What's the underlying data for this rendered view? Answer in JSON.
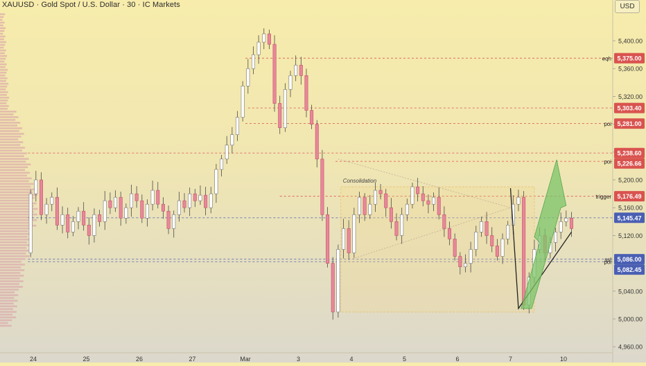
{
  "header": {
    "symbol_title": "XAUUSD · Gold Spot / U.S. Dollar · 30 · IC Markets",
    "currency": "USD"
  },
  "colors": {
    "up": "#d9d9d9",
    "down": "#e8879a",
    "candle_body_up": "#ffffff",
    "wick": "#555555",
    "level_red": "#d9534f",
    "level_blue": "#4a5fb3",
    "arrow_green": "#7cc46a",
    "box": "#e8c77a"
  },
  "chart_data": {
    "type": "candlestick",
    "title": "XAUUSD · Gold Spot / U.S. Dollar · 30 · IC Markets",
    "ylim": [
      4950,
      5435
    ],
    "y_ticks": [
      "5,400.00",
      "5,360.00",
      "5,320.00",
      "5,280.00",
      "5,240.00",
      "5,200.00",
      "5,160.00",
      "5,120.00",
      "5,040.00",
      "5,000.00",
      "4,960.00"
    ],
    "y_tick_values": [
      5400,
      5360,
      5320,
      5280,
      5240,
      5200,
      5160,
      5120,
      5040,
      5000,
      4960
    ],
    "x_ticks": [
      "24",
      "25",
      "26",
      "27",
      "Mar",
      "3",
      "4",
      "5",
      "6",
      "7",
      "10"
    ],
    "x_tick_values": [
      0,
      1,
      2,
      3,
      4,
      5,
      6,
      7,
      8,
      9,
      10
    ],
    "xlim": [
      -0.1,
      10.4
    ],
    "grid": false,
    "candles_estimated": [
      [
        -0.05,
        5095,
        5180
      ],
      [
        0.05,
        5180,
        5200
      ],
      [
        0.15,
        5200,
        5150
      ],
      [
        0.25,
        5150,
        5165
      ],
      [
        0.35,
        5165,
        5175
      ],
      [
        0.45,
        5175,
        5135
      ],
      [
        0.55,
        5135,
        5150
      ],
      [
        0.65,
        5150,
        5125
      ],
      [
        0.75,
        5125,
        5140
      ],
      [
        0.85,
        5140,
        5155
      ],
      [
        0.95,
        5155,
        5135
      ],
      [
        1.05,
        5135,
        5120
      ],
      [
        1.15,
        5120,
        5150
      ],
      [
        1.25,
        5150,
        5140
      ],
      [
        1.35,
        5140,
        5170
      ],
      [
        1.45,
        5170,
        5160
      ],
      [
        1.55,
        5160,
        5175
      ],
      [
        1.65,
        5175,
        5145
      ],
      [
        1.75,
        5145,
        5160
      ],
      [
        1.85,
        5160,
        5180
      ],
      [
        1.95,
        5180,
        5170
      ],
      [
        2.05,
        5170,
        5145
      ],
      [
        2.15,
        5145,
        5165
      ],
      [
        2.25,
        5165,
        5185
      ],
      [
        2.35,
        5185,
        5165
      ],
      [
        2.45,
        5165,
        5155
      ],
      [
        2.55,
        5155,
        5130
      ],
      [
        2.65,
        5130,
        5150
      ],
      [
        2.75,
        5150,
        5170
      ],
      [
        2.85,
        5170,
        5160
      ],
      [
        2.95,
        5160,
        5180
      ],
      [
        3.05,
        5180,
        5170
      ],
      [
        3.15,
        5170,
        5178
      ],
      [
        3.25,
        5178,
        5160
      ],
      [
        3.35,
        5160,
        5180
      ],
      [
        3.45,
        5180,
        5215
      ],
      [
        3.55,
        5215,
        5230
      ],
      [
        3.65,
        5230,
        5250
      ],
      [
        3.75,
        5250,
        5265
      ],
      [
        3.85,
        5265,
        5290
      ],
      [
        3.95,
        5290,
        5335
      ],
      [
        4.05,
        5335,
        5360
      ],
      [
        4.15,
        5360,
        5380
      ],
      [
        4.25,
        5380,
        5398
      ],
      [
        4.35,
        5398,
        5410
      ],
      [
        4.45,
        5410,
        5395
      ],
      [
        4.55,
        5395,
        5310
      ],
      [
        4.65,
        5310,
        5275
      ],
      [
        4.75,
        5275,
        5330
      ],
      [
        4.85,
        5330,
        5350
      ],
      [
        4.95,
        5350,
        5365
      ],
      [
        5.05,
        5365,
        5350
      ],
      [
        5.15,
        5350,
        5300
      ],
      [
        5.25,
        5300,
        5280
      ],
      [
        5.35,
        5280,
        5230
      ],
      [
        5.45,
        5230,
        5150
      ],
      [
        5.55,
        5150,
        5080
      ],
      [
        5.65,
        5080,
        5010
      ],
      [
        5.75,
        5010,
        5100
      ],
      [
        5.85,
        5100,
        5130
      ],
      [
        5.95,
        5130,
        5095
      ],
      [
        6.05,
        5095,
        5150
      ],
      [
        6.15,
        5150,
        5175
      ],
      [
        6.25,
        5175,
        5150
      ],
      [
        6.35,
        5150,
        5165
      ],
      [
        6.45,
        5165,
        5185
      ],
      [
        6.55,
        5185,
        5180
      ],
      [
        6.65,
        5180,
        5160
      ],
      [
        6.75,
        5160,
        5140
      ],
      [
        6.85,
        5140,
        5120
      ],
      [
        6.95,
        5120,
        5150
      ],
      [
        7.05,
        5150,
        5165
      ],
      [
        7.15,
        5165,
        5190
      ],
      [
        7.25,
        5190,
        5180
      ],
      [
        7.35,
        5180,
        5170
      ],
      [
        7.45,
        5170,
        5165
      ],
      [
        7.55,
        5165,
        5175
      ],
      [
        7.65,
        5175,
        5150
      ],
      [
        7.75,
        5150,
        5130
      ],
      [
        7.85,
        5130,
        5115
      ],
      [
        7.95,
        5115,
        5090
      ],
      [
        8.05,
        5090,
        5075
      ],
      [
        8.15,
        5075,
        5080
      ],
      [
        8.25,
        5080,
        5100
      ],
      [
        8.35,
        5100,
        5125
      ],
      [
        8.45,
        5125,
        5140
      ],
      [
        8.55,
        5140,
        5120
      ],
      [
        8.65,
        5120,
        5105
      ],
      [
        8.75,
        5105,
        5090
      ],
      [
        8.85,
        5090,
        5115
      ],
      [
        8.95,
        5115,
        5135
      ],
      [
        9.05,
        5135,
        5165
      ],
      [
        9.15,
        5165,
        5175
      ],
      [
        9.25,
        5175,
        5020
      ],
      [
        9.35,
        5020,
        5060
      ],
      [
        9.45,
        5060,
        5100
      ],
      [
        9.55,
        5100,
        5120
      ],
      [
        9.65,
        5120,
        5095
      ],
      [
        9.75,
        5095,
        5110
      ],
      [
        9.85,
        5110,
        5125
      ],
      [
        9.95,
        5125,
        5140
      ],
      [
        10.05,
        5140,
        5145
      ],
      [
        10.15,
        5145,
        5130
      ]
    ],
    "levels": [
      {
        "label": "eqh",
        "value": 5375.0,
        "price": "5,375.00",
        "color": "red",
        "x_start": 4.0
      },
      {
        "label": "",
        "value": 5303.4,
        "price": "5,303.40",
        "color": "red",
        "x_start": 4.05
      },
      {
        "label": "poi",
        "value": 5281.0,
        "price": "5,281.00",
        "color": "red",
        "x_start": 4.0
      },
      {
        "label": "",
        "value": 5238.6,
        "price": "5,238.60",
        "color": "red",
        "x_start": -0.1
      },
      {
        "label": "poi",
        "value": 5226.66,
        "price": "5,226.66",
        "color": "red",
        "x_start": 5.7
      },
      {
        "label": "trigger",
        "value": 5176.49,
        "price": "5,176.49",
        "color": "red",
        "x_start": 4.65
      },
      {
        "label": "",
        "value": 5145.47,
        "price": "5,145.47",
        "color": "blue",
        "x_start": -0.1
      },
      {
        "label": "ssl",
        "value": 5086.0,
        "price": "5,086.00",
        "color": "blue",
        "x_start": -0.1
      },
      {
        "label": "poi",
        "value": 5082.45,
        "price": "5,082.45",
        "color": "blue",
        "x_start": -0.1
      }
    ],
    "consolidation": {
      "label": "Consolidation",
      "x_range": [
        5.8,
        9.45
      ],
      "y_range": [
        5010,
        5190
      ]
    }
  }
}
